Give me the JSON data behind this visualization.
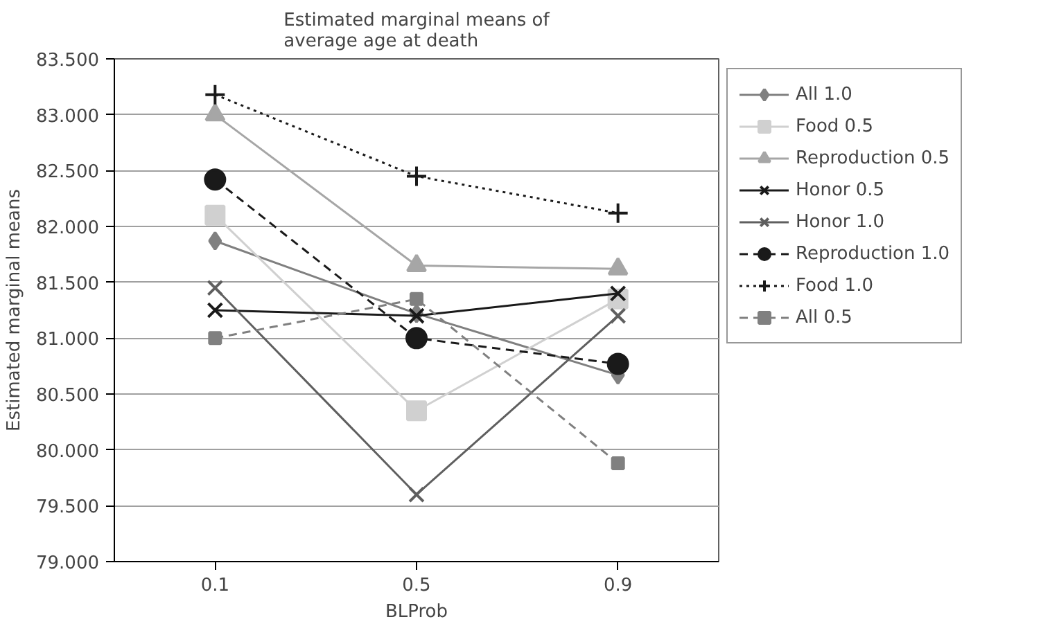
{
  "chart_data": {
    "type": "line",
    "title": "Estimated marginal means of\naverage age at death",
    "xlabel": "BLProb",
    "ylabel": "Estimated marginal means",
    "categories": [
      "0.1",
      "0.5",
      "0.9"
    ],
    "ylim": [
      79.0,
      83.5
    ],
    "yticks": [
      {
        "value": 79.0,
        "label": "79.000"
      },
      {
        "value": 79.5,
        "label": "79.500"
      },
      {
        "value": 80.0,
        "label": "80.000"
      },
      {
        "value": 80.5,
        "label": "80.500"
      },
      {
        "value": 81.0,
        "label": "81.000"
      },
      {
        "value": 81.5,
        "label": "81.500"
      },
      {
        "value": 82.0,
        "label": "82.000"
      },
      {
        "value": 82.5,
        "label": "82.500"
      },
      {
        "value": 83.0,
        "label": "83.000"
      },
      {
        "value": 83.5,
        "label": "83.500"
      }
    ],
    "grid": "y",
    "legend": "right",
    "series": [
      {
        "name": "All 1.0",
        "color": "#808080",
        "marker": "diamond",
        "line_style": "solid",
        "values": [
          81.87,
          81.22,
          80.67
        ]
      },
      {
        "name": "Food 0.5",
        "color": "#d0d0d0",
        "marker": "square",
        "line_style": "solid",
        "values": [
          82.1,
          80.35,
          81.35
        ]
      },
      {
        "name": "Reproduction 0.5",
        "color": "#a6a6a6",
        "marker": "triangle",
        "line_style": "solid",
        "values": [
          83.0,
          81.65,
          81.62
        ]
      },
      {
        "name": "Honor 0.5",
        "color": "#1a1a1a",
        "marker": "cross",
        "line_style": "solid",
        "values": [
          81.25,
          81.2,
          81.4
        ]
      },
      {
        "name": "Honor 1.0",
        "color": "#5f5f5f",
        "marker": "cross",
        "line_style": "solid",
        "values": [
          81.45,
          79.6,
          81.2
        ]
      },
      {
        "name": "Reproduction 1.0",
        "color": "#1a1a1a",
        "marker": "circle",
        "line_style": "dashed",
        "values": [
          82.42,
          81.0,
          80.77
        ]
      },
      {
        "name": "Food 1.0",
        "color": "#1a1a1a",
        "marker": "cross",
        "line_style": "dotted",
        "values": [
          83.18,
          82.45,
          82.12
        ]
      },
      {
        "name": "All 0.5",
        "color": "#808080",
        "marker": "square",
        "line_style": "dashed",
        "values": [
          81.0,
          81.35,
          79.88
        ]
      }
    ]
  }
}
